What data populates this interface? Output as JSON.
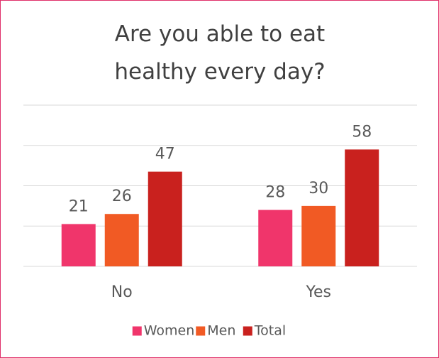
{
  "chart_data": {
    "type": "bar",
    "title": "Are you able to eat healthy every day?",
    "categories": [
      "No",
      "Yes"
    ],
    "series": [
      {
        "name": "Women",
        "color": "#f0356b",
        "values": [
          21,
          28
        ]
      },
      {
        "name": "Men",
        "color": "#f15a24",
        "values": [
          26,
          30
        ]
      },
      {
        "name": "Total",
        "color": "#c9211e",
        "values": [
          47,
          58
        ]
      }
    ],
    "ylim": [
      0,
      80
    ],
    "yticks": [
      0,
      20,
      40,
      60,
      80
    ],
    "grid": true,
    "legend": "bottom"
  }
}
